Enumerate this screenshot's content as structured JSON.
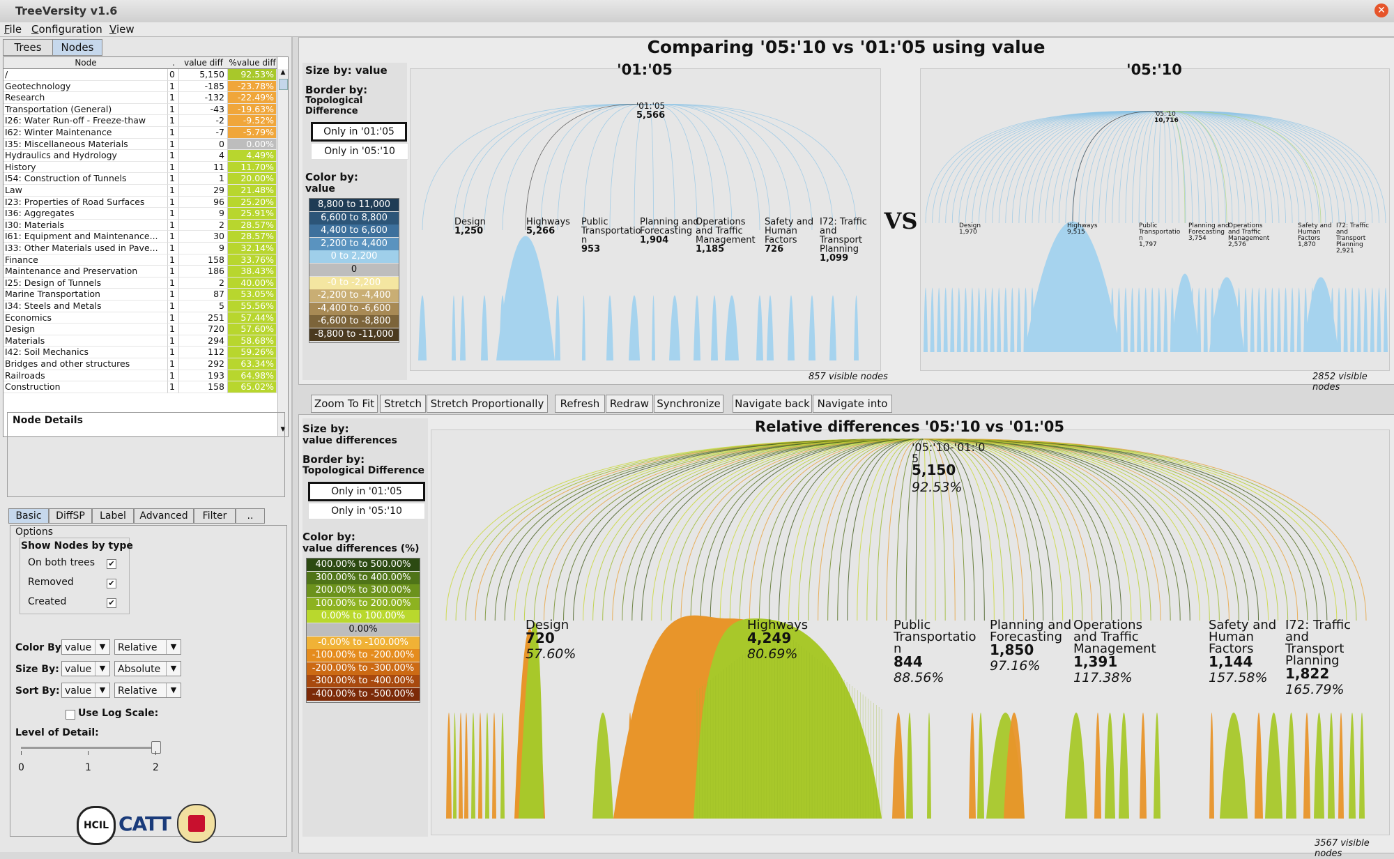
{
  "app": {
    "title": "TreeVersity v1.6",
    "menus": [
      "File",
      "Configuration",
      "View"
    ]
  },
  "left": {
    "tabs": [
      "Trees",
      "Nodes"
    ],
    "table": {
      "headers": [
        "Node",
        ".",
        "value diff",
        "%value diff"
      ],
      "rows": [
        {
          "name": "/",
          "lvl": "0",
          "val": "5,150",
          "pct": "92.53%",
          "color": "#a8c82a"
        },
        {
          "name": "Geotechnology",
          "lvl": "1",
          "val": "-185",
          "pct": "-23.78%",
          "color": "#f0a63a"
        },
        {
          "name": "Research",
          "lvl": "1",
          "val": "-132",
          "pct": "-22.49%",
          "color": "#f0a63a"
        },
        {
          "name": "Transportation (General)",
          "lvl": "1",
          "val": "-43",
          "pct": "-19.63%",
          "color": "#f0a63a"
        },
        {
          "name": "I26: Water Run-off - Freeze-thaw",
          "lvl": "1",
          "val": "-2",
          "pct": "-9.52%",
          "color": "#f0a63a"
        },
        {
          "name": "I62: Winter Maintenance",
          "lvl": "1",
          "val": "-7",
          "pct": "-5.79%",
          "color": "#f0a63a"
        },
        {
          "name": "I35: Miscellaneous Materials",
          "lvl": "1",
          "val": "0",
          "pct": "0.00%",
          "color": "#bdbdbd"
        },
        {
          "name": "Hydraulics and Hydrology",
          "lvl": "1",
          "val": "4",
          "pct": "4.49%",
          "color": "#b8d62e"
        },
        {
          "name": "History",
          "lvl": "1",
          "val": "11",
          "pct": "11.70%",
          "color": "#b8d62e"
        },
        {
          "name": "I54: Construction of Tunnels",
          "lvl": "1",
          "val": "1",
          "pct": "20.00%",
          "color": "#b8d62e"
        },
        {
          "name": "Law",
          "lvl": "1",
          "val": "29",
          "pct": "21.48%",
          "color": "#b8d62e"
        },
        {
          "name": "I23: Properties of Road Surfaces",
          "lvl": "1",
          "val": "96",
          "pct": "25.20%",
          "color": "#b8d62e"
        },
        {
          "name": "I36: Aggregates",
          "lvl": "1",
          "val": "9",
          "pct": "25.91%",
          "color": "#b8d62e"
        },
        {
          "name": "I30: Materials",
          "lvl": "1",
          "val": "2",
          "pct": "28.57%",
          "color": "#b8d62e"
        },
        {
          "name": "I61: Equipment and Maintenance...",
          "lvl": "1",
          "val": "30",
          "pct": "28.57%",
          "color": "#b8d62e"
        },
        {
          "name": "I33: Other Materials used in Pave...",
          "lvl": "1",
          "val": "9",
          "pct": "32.14%",
          "color": "#b8d62e"
        },
        {
          "name": "Finance",
          "lvl": "1",
          "val": "158",
          "pct": "33.76%",
          "color": "#b8d62e"
        },
        {
          "name": "Maintenance and Preservation",
          "lvl": "1",
          "val": "186",
          "pct": "38.43%",
          "color": "#b8d62e"
        },
        {
          "name": "I25: Design of Tunnels",
          "lvl": "1",
          "val": "2",
          "pct": "40.00%",
          "color": "#b8d62e"
        },
        {
          "name": "Marine Transportation",
          "lvl": "1",
          "val": "87",
          "pct": "53.05%",
          "color": "#b8d62e"
        },
        {
          "name": "I34: Steels and Metals",
          "lvl": "1",
          "val": "5",
          "pct": "55.56%",
          "color": "#b8d62e"
        },
        {
          "name": "Economics",
          "lvl": "1",
          "val": "251",
          "pct": "57.44%",
          "color": "#b8d62e"
        },
        {
          "name": "Design",
          "lvl": "1",
          "val": "720",
          "pct": "57.60%",
          "color": "#b8d62e"
        },
        {
          "name": "Materials",
          "lvl": "1",
          "val": "294",
          "pct": "58.68%",
          "color": "#b8d62e"
        },
        {
          "name": "I42: Soil Mechanics",
          "lvl": "1",
          "val": "112",
          "pct": "59.26%",
          "color": "#b8d62e"
        },
        {
          "name": "Bridges and other structures",
          "lvl": "1",
          "val": "292",
          "pct": "63.34%",
          "color": "#b8d62e"
        },
        {
          "name": "Railroads",
          "lvl": "1",
          "val": "193",
          "pct": "64.98%",
          "color": "#b8d62e"
        },
        {
          "name": "Construction",
          "lvl": "1",
          "val": "158",
          "pct": "65.02%",
          "color": "#b8d62e"
        }
      ]
    },
    "node_details_title": "Node Details",
    "option_tabs": [
      "Basic",
      "DiffSP",
      "Label",
      "Advanced",
      "Filter",
      ".."
    ],
    "options_title": "Options",
    "show_nodes_title": "Show Nodes by type",
    "show_nodes": [
      {
        "label": "On both trees",
        "checked": "✔"
      },
      {
        "label": "Removed",
        "checked": "✔"
      },
      {
        "label": "Created",
        "checked": "✔"
      }
    ],
    "color_by": {
      "label": "Color By:",
      "a": "value",
      "b": "Relative"
    },
    "size_by": {
      "label": "Size By:",
      "a": "value",
      "b": "Absolute"
    },
    "sort_by": {
      "label": "Sort By:",
      "a": "value",
      "b": "Relative"
    },
    "log_scale": "Use Log Scale:",
    "lod": {
      "label": "Level of Detail:",
      "ticks": [
        "0",
        "1",
        "2"
      ],
      "value": 2,
      "max": 2
    },
    "logos": [
      "HCIL",
      "CATT",
      "UNIVERSITY OF MARYLAND"
    ]
  },
  "top": {
    "title": "Comparing '05:'10 vs '01:'05 using value",
    "size_by": "Size by: value",
    "border_by": "Border by:",
    "border_sub": [
      "Topological",
      "Difference"
    ],
    "only_a": "Only in '01:'05",
    "only_b": "Only in '05:'10",
    "color_by": "Color by:",
    "color_sub": "value",
    "legend": [
      {
        "label": "8,800 to 11,000",
        "color": "#1f3c55",
        "fg": "#ffffff"
      },
      {
        "label": "6,600 to 8,800",
        "color": "#2c5578",
        "fg": "#ffffff"
      },
      {
        "label": "4,400 to 6,600",
        "color": "#3d709c",
        "fg": "#ffffff"
      },
      {
        "label": "2,200 to 4,400",
        "color": "#5a93bf",
        "fg": "#ffffff"
      },
      {
        "label": "0 to 2,200",
        "color": "#9fcfea",
        "fg": "#ffffff"
      },
      {
        "label": "0",
        "color": "#bdbdbd",
        "fg": "#111111"
      },
      {
        "label": "-0 to -2,200",
        "color": "#f4e6a1",
        "fg": "#ffffff"
      },
      {
        "label": "-2,200 to -4,400",
        "color": "#c9ae74",
        "fg": "#ffffff"
      },
      {
        "label": "-4,400 to -6,600",
        "color": "#a88a55",
        "fg": "#ffffff"
      },
      {
        "label": "-6,600 to -8,800",
        "color": "#7c643a",
        "fg": "#ffffff"
      },
      {
        "label": "-8,800 to -11,000",
        "color": "#4b3a1f",
        "fg": "#ffffff"
      }
    ],
    "left_tree": {
      "name": "'01:'05",
      "root": [
        "'01:'05",
        "5,566"
      ],
      "footer": "857 visible nodes",
      "labels": [
        {
          "name": "Design",
          "val": "1,250"
        },
        {
          "name": "Highways",
          "val": "5,266"
        },
        {
          "name": "Public\nTransportatio\nn",
          "val": "953"
        },
        {
          "name": "Planning and\nForecasting",
          "val": "1,904"
        },
        {
          "name": "Operations\nand Traffic\nManagement",
          "val": "1,185"
        },
        {
          "name": "Safety and\nHuman\nFactors",
          "val": "726"
        },
        {
          "name": "I72: Traffic\nand\nTransport\nPlanning",
          "val": "1,099"
        }
      ]
    },
    "vs": "VS",
    "right_tree": {
      "name": "'05:'10",
      "root": [
        "'05:'10",
        "10,716"
      ],
      "footer": "2852 visible nodes",
      "labels": [
        {
          "name": "Design",
          "val": "1,970"
        },
        {
          "name": "Highways",
          "val": "9,515"
        },
        {
          "name": "Public\nTransportatio\nn",
          "val": "1,797"
        },
        {
          "name": "Planning and\nForecasting",
          "val": "3,754"
        },
        {
          "name": "Operations\nand Traffic\nManagement",
          "val": "2,576"
        },
        {
          "name": "Safety and\nHuman\nFactors",
          "val": "1,870"
        },
        {
          "name": "I72: Traffic\nand\nTransport\nPlanning",
          "val": "2,921"
        }
      ]
    }
  },
  "toolbar": [
    "Zoom To Fit",
    "Stretch",
    "Stretch Proportionally",
    "Refresh",
    "Redraw",
    "Synchronize",
    "Navigate back",
    "Navigate into"
  ],
  "bottom": {
    "title": "Relative differences '05:'10 vs '01:'05",
    "size_by": "Size by:",
    "size_sub": "value differences",
    "border_by": "Border by:",
    "border_sub": "Topological Difference",
    "only_a": "Only in '01:'05",
    "only_b": "Only in '05:'10",
    "color_by": "Color by:",
    "color_sub": "value differences (%)",
    "legend": [
      {
        "label": "400.00% to 500.00%",
        "color": "#2c4a12",
        "fg": "#ffffff"
      },
      {
        "label": "300.00% to 400.00%",
        "color": "#4f7418",
        "fg": "#ffffff"
      },
      {
        "label": "200.00% to 300.00%",
        "color": "#6c921c",
        "fg": "#ffffff"
      },
      {
        "label": "100.00% to 200.00%",
        "color": "#8db220",
        "fg": "#ffffff"
      },
      {
        "label": "0.00% to 100.00%",
        "color": "#b9d82d",
        "fg": "#ffffff"
      },
      {
        "label": "0.00%",
        "color": "#bdbdbd",
        "fg": "#111111"
      },
      {
        "label": "-0.00% to -100.00%",
        "color": "#f0b236",
        "fg": "#ffffff"
      },
      {
        "label": "-100.00% to -200.00%",
        "color": "#e58c1e",
        "fg": "#ffffff"
      },
      {
        "label": "-200.00% to -300.00%",
        "color": "#cc6a14",
        "fg": "#ffffff"
      },
      {
        "label": "-300.00% to -400.00%",
        "color": "#a8490e",
        "fg": "#ffffff"
      },
      {
        "label": "-400.00% to -500.00%",
        "color": "#7c2a08",
        "fg": "#ffffff"
      }
    ],
    "root": [
      "'05:'10-'01:'0\n5",
      "5,150",
      "92.53%"
    ],
    "footer": "3567 visible nodes",
    "labels": [
      {
        "name": "Design",
        "val": "720",
        "pct": "57.60%"
      },
      {
        "name": "Highways",
        "val": "4,249",
        "pct": "80.69%"
      },
      {
        "name": "Public\nTransportatio\nn",
        "val": "844",
        "pct": "88.56%"
      },
      {
        "name": "Planning and\nForecasting",
        "val": "1,850",
        "pct": "97.16%"
      },
      {
        "name": "Operations\nand Traffic\nManagement",
        "val": "1,391",
        "pct": "117.38%"
      },
      {
        "name": "Safety and\nHuman\nFactors",
        "val": "1,144",
        "pct": "157.58%"
      },
      {
        "name": "I72: Traffic\nand\nTransport\nPlanning",
        "val": "1,822",
        "pct": "165.79%"
      }
    ]
  },
  "colors": {
    "blue_leaf": "#a6d3ee",
    "green_leaf": "#a8c82a",
    "orange_leaf": "#e8952a"
  }
}
